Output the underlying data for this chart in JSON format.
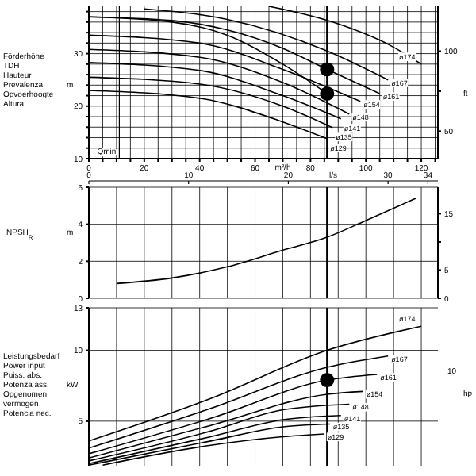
{
  "chart_data": [
    {
      "type": "line",
      "ylabel": "Förderhöhe\nTDH\nHauteur\nPrevalenza\nOpvoerhoogte\nAltura",
      "y2label": "ft",
      "xlabel": "m³/h",
      "annotations": [
        "m"
      ],
      "xlim": [
        0,
        126
      ],
      "xticks": [
        0,
        {
          "value": 5,
          "label": null
        },
        {
          "value": 10,
          "label": null
        },
        {
          "value": 15,
          "label": null
        },
        20,
        {
          "value": 25,
          "label": null
        },
        {
          "value": 30,
          "label": null
        },
        {
          "value": 35,
          "label": null
        },
        40,
        {
          "value": 45,
          "label": null
        },
        {
          "value": 50,
          "label": null
        },
        {
          "value": 55,
          "label": null
        },
        60,
        {
          "value": 65,
          "label": null
        },
        {
          "value": 70,
          "label": null
        },
        {
          "value": 75,
          "label": null
        },
        80,
        {
          "value": 85,
          "label": null
        },
        {
          "value": 90,
          "label": null
        },
        {
          "value": 95,
          "label": null
        },
        100,
        {
          "value": 105,
          "label": null
        },
        {
          "value": 110,
          "label": null
        },
        {
          "value": 115,
          "label": null
        },
        120,
        {
          "value": 125,
          "label": null
        }
      ],
      "ylim": [
        10,
        39
      ],
      "yticks": [
        10,
        {
          "value": 12,
          "label": null
        },
        {
          "value": 14,
          "label": null
        },
        {
          "value": 16,
          "label": null
        },
        {
          "value": 18,
          "label": null
        },
        20,
        {
          "value": 22,
          "label": null
        },
        {
          "value": 24,
          "label": null
        },
        {
          "value": 26,
          "label": null
        },
        {
          "value": 28,
          "label": null
        },
        30,
        {
          "value": 32,
          "label": null
        },
        {
          "value": 34,
          "label": null
        },
        {
          "value": 36,
          "label": null
        },
        {
          "value": 38,
          "label": null
        }
      ],
      "y2lim": [
        32.8,
        128
      ],
      "y2ticks": [
        50,
        {
          "value": 75,
          "label": null
        },
        100
      ],
      "grid": true,
      "marker": "none",
      "line_style": "solid",
      "ref_lines": [
        {
          "axis": "x",
          "value": 86,
          "color": "#000000"
        },
        {
          "axis": "x",
          "value": 11,
          "label": "Qmin",
          "color": "#000000"
        }
      ],
      "series": [
        {
          "name": "ø174",
          "color": "#000000",
          "x": [
            65,
            88,
            109,
            120
          ],
          "values": [
            39,
            36,
            31.5,
            28
          ]
        },
        {
          "name": "ø167",
          "color": "#000000",
          "x": [
            20,
            50,
            86,
            108
          ],
          "values": [
            38.5,
            36.5,
            30.5,
            25
          ]
        },
        {
          "name": "ø161",
          "color": "#000000",
          "x": [
            0,
            30,
            50,
            70,
            86,
            105
          ],
          "values": [
            37,
            36.3,
            34.5,
            31,
            27,
            22.4
          ]
        },
        {
          "color": "#000000",
          "x": [
            0,
            30,
            50,
            70,
            86
          ],
          "values": [
            37,
            36,
            33.5,
            28,
            22.4
          ]
        },
        {
          "name": "ø154",
          "color": "#000000",
          "x": [
            0,
            40,
            70,
            98
          ],
          "values": [
            33.5,
            32,
            27,
            20.9
          ]
        },
        {
          "name": "ø148",
          "color": "#000000",
          "x": [
            0,
            40,
            70,
            94
          ],
          "values": [
            30.8,
            29.3,
            24.5,
            18.5
          ]
        },
        {
          "name": "ø141",
          "color": "#000000",
          "x": [
            0,
            40,
            70,
            91
          ],
          "values": [
            28.3,
            26.8,
            22,
            17.6
          ]
        },
        {
          "name": "ø135",
          "color": "#000000",
          "x": [
            0,
            40,
            70,
            88
          ],
          "values": [
            25.5,
            24.2,
            20,
            15.9
          ]
        },
        {
          "name": "ø129",
          "color": "#000000",
          "x": [
            0,
            40,
            70,
            86
          ],
          "values": [
            23,
            21.5,
            17,
            13.8
          ]
        },
        {
          "type": "scatter",
          "color": "#000000",
          "marker": "circle",
          "x": [
            86,
            86
          ],
          "values": [
            27,
            22.4
          ]
        }
      ]
    },
    {
      "type": "line",
      "ylabel": "NPSH$_{R}$",
      "annotations": [
        "m"
      ],
      "x2label": "l/s",
      "xlim": [
        0,
        126
      ],
      "xticks": [
        {
          "value": 0,
          "label": null
        },
        {
          "value": 10,
          "label": null
        },
        {
          "value": 20,
          "label": null
        },
        {
          "value": 30,
          "label": null
        },
        {
          "value": 40,
          "label": null
        },
        {
          "value": 50,
          "label": null
        },
        {
          "value": 60,
          "label": null
        },
        {
          "value": 70,
          "label": null
        },
        {
          "value": 80,
          "label": null
        },
        {
          "value": 90,
          "label": null
        },
        {
          "value": 100,
          "label": null
        },
        {
          "value": 110,
          "label": null
        },
        {
          "value": 120,
          "label": null
        }
      ],
      "x2lim": [
        0,
        35
      ],
      "x2ticks": [
        0,
        10,
        20,
        30,
        34
      ],
      "ylim": [
        0,
        6
      ],
      "yticks": [
        0,
        2,
        4,
        6
      ],
      "y2lim": [
        0,
        19.7
      ],
      "y2ticks": [
        0,
        5,
        {
          "value": 10,
          "label": null
        },
        15
      ],
      "grid": true,
      "marker": "none",
      "line_style": "solid",
      "tick_labels": "y",
      "ref_lines": [
        {
          "axis": "x",
          "value": 86,
          "color": "#000000"
        }
      ],
      "series": [
        {
          "color": "#000000",
          "x": [
            10,
            30,
            50,
            70,
            86,
            100,
            118
          ],
          "values": [
            0.8,
            1.1,
            1.7,
            2.6,
            3.3,
            4.2,
            5.4
          ]
        }
      ]
    },
    {
      "type": "line",
      "ylabel": "Leistungsbedarf\nPower input\nPuiss. abs.\nPotenza ass.\nOpgenomen\nvermogen\nPotencia nec.",
      "annotations": [
        "kW",
        "10"
      ],
      "y2label": "hp",
      "xlim": [
        0,
        126
      ],
      "xticks": [
        {
          "value": 0,
          "label": null
        },
        {
          "value": 10,
          "label": null
        },
        {
          "value": 20,
          "label": null
        },
        {
          "value": 30,
          "label": null
        },
        {
          "value": 40,
          "label": null
        },
        {
          "value": 50,
          "label": null
        },
        {
          "value": 60,
          "label": null
        },
        {
          "value": 70,
          "label": null
        },
        {
          "value": 80,
          "label": null
        },
        {
          "value": 90,
          "label": null
        },
        {
          "value": 100,
          "label": null
        },
        {
          "value": 110,
          "label": null
        },
        {
          "value": 120,
          "label": null
        }
      ],
      "ylim": [
        1.8,
        13
      ],
      "yticks": [
        5,
        10,
        13
      ],
      "grid": true,
      "marker": "none",
      "line_style": "solid",
      "tick_labels": "y",
      "ref_lines": [
        {
          "axis": "x",
          "value": 86,
          "color": "#000000"
        }
      ],
      "series": [
        {
          "name": "ø174",
          "color": "#000000",
          "x": [
            0,
            44,
            86,
            120
          ],
          "values": [
            3.6,
            6.6,
            10,
            11.7
          ]
        },
        {
          "name": "ø167",
          "color": "#000000",
          "x": [
            0,
            44,
            86,
            108
          ],
          "values": [
            3.1,
            5.9,
            8.8,
            9.6
          ]
        },
        {
          "name": "ø161",
          "color": "#000000",
          "x": [
            0,
            44,
            86,
            104
          ],
          "values": [
            2.7,
            5.2,
            7.9,
            8.3
          ]
        },
        {
          "name": "ø154",
          "color": "#000000",
          "x": [
            0,
            44,
            86,
            99
          ],
          "values": [
            2.4,
            4.7,
            6.9,
            7.1
          ]
        },
        {
          "name": "ø148",
          "color": "#000000",
          "x": [
            0,
            44,
            70,
            94
          ],
          "values": [
            2.2,
            4.3,
            5.8,
            6.2
          ]
        },
        {
          "name": "ø141",
          "color": "#000000",
          "x": [
            0,
            44,
            70,
            91
          ],
          "values": [
            2,
            3.9,
            5.1,
            5.4
          ]
        },
        {
          "name": "ø135",
          "color": "#000000",
          "x": [
            0,
            44,
            70,
            87
          ],
          "values": [
            1.9,
            3.6,
            4.6,
            4.8
          ]
        },
        {
          "name": "ø129",
          "color": "#000000",
          "x": [
            5,
            44,
            70,
            85
          ],
          "values": [
            1.9,
            3.3,
            3.9,
            4.1
          ]
        },
        {
          "type": "scatter",
          "color": "#000000",
          "marker": "circle",
          "x": [
            86
          ],
          "values": [
            7.9
          ]
        }
      ]
    }
  ]
}
